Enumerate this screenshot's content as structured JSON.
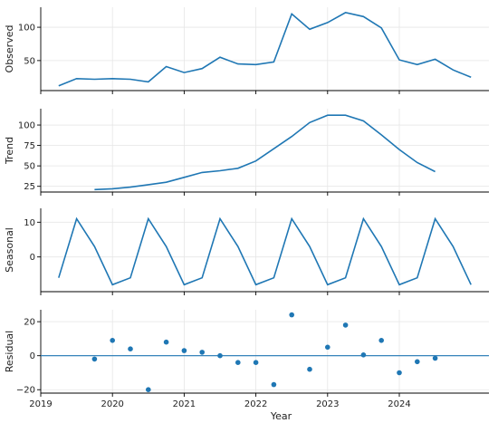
{
  "chart_data": [
    {
      "type": "line",
      "ylabel": "Observed",
      "ylim": [
        5,
        130
      ],
      "yticks": [
        50,
        100
      ],
      "x": [
        "2019-04",
        "2019-07",
        "2019-10",
        "2020-01",
        "2020-04",
        "2020-07",
        "2020-10",
        "2021-01",
        "2021-04",
        "2021-07",
        "2021-10",
        "2022-01",
        "2022-04",
        "2022-07",
        "2022-10",
        "2023-01",
        "2023-04",
        "2023-07",
        "2023-10",
        "2024-01",
        "2024-04",
        "2024-07",
        "2024-10",
        "2025-01"
      ],
      "values": [
        12,
        23,
        22,
        23,
        22,
        18,
        41,
        32,
        38,
        55,
        45,
        44,
        48,
        120,
        97,
        107,
        122,
        116,
        99,
        51,
        44,
        52,
        36,
        25
      ]
    },
    {
      "type": "line",
      "ylabel": "Trend",
      "ylim": [
        18,
        120
      ],
      "yticks": [
        25,
        50,
        75,
        100
      ],
      "x": [
        "2019-10",
        "2020-01",
        "2020-04",
        "2020-07",
        "2020-10",
        "2021-01",
        "2021-04",
        "2021-07",
        "2021-10",
        "2022-01",
        "2022-04",
        "2022-07",
        "2022-10",
        "2023-01",
        "2023-04",
        "2023-07",
        "2023-10",
        "2024-01",
        "2024-04",
        "2024-07"
      ],
      "values": [
        21,
        22,
        24,
        27,
        30,
        36,
        42,
        44,
        47,
        56,
        71,
        86,
        103,
        112,
        112,
        105,
        88,
        70,
        54,
        43
      ]
    },
    {
      "type": "line",
      "ylabel": "Seasonal",
      "ylim": [
        -10,
        14
      ],
      "yticks": [
        0,
        10
      ],
      "x": [
        "2019-04",
        "2019-07",
        "2019-10",
        "2020-01",
        "2020-04",
        "2020-07",
        "2020-10",
        "2021-01",
        "2021-04",
        "2021-07",
        "2021-10",
        "2022-01",
        "2022-04",
        "2022-07",
        "2022-10",
        "2023-01",
        "2023-04",
        "2023-07",
        "2023-10",
        "2024-01",
        "2024-04",
        "2024-07",
        "2024-10",
        "2025-01"
      ],
      "values": [
        -6,
        11,
        3,
        -8,
        -6,
        11,
        3,
        -8,
        -6,
        11,
        3,
        -8,
        -6,
        11,
        3,
        -8,
        -6,
        11,
        3,
        -8,
        -6,
        11,
        3,
        -8
      ]
    },
    {
      "type": "scatter",
      "ylabel": "Residual",
      "xlabel": "Year",
      "ylim": [
        -22,
        27
      ],
      "yticks": [
        -20,
        0,
        20
      ],
      "xticks": [
        "2019",
        "2020",
        "2021",
        "2022",
        "2023",
        "2024"
      ],
      "zero_line": true,
      "x": [
        "2019-10",
        "2020-01",
        "2020-04",
        "2020-07",
        "2020-10",
        "2021-01",
        "2021-04",
        "2021-07",
        "2021-10",
        "2022-01",
        "2022-04",
        "2022-07",
        "2022-10",
        "2023-01",
        "2023-04",
        "2023-07",
        "2023-10",
        "2024-01",
        "2024-04",
        "2024-07"
      ],
      "values": [
        -2,
        9,
        4,
        -20,
        8,
        3,
        2,
        0,
        -4,
        -4,
        -17,
        24,
        -8,
        5,
        18,
        0.5,
        9,
        -10,
        -3.5,
        -1.5
      ]
    }
  ],
  "colors": {
    "series": "#1f77b4"
  }
}
